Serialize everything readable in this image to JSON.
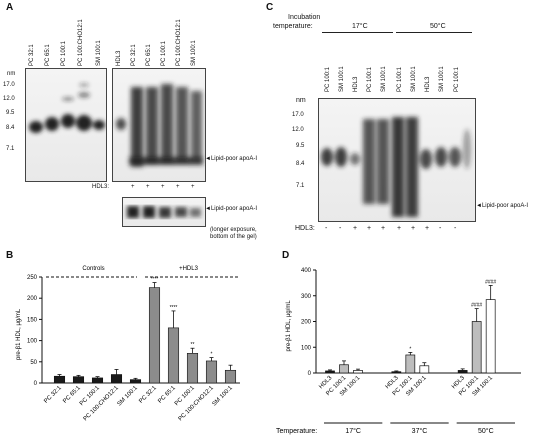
{
  "panels": {
    "A": {
      "letter": "A",
      "lanes_left": [
        "PC 32:1",
        "PC 65:1",
        "PC 100:1",
        "PC 100:CHO12:1",
        "SM 100:1"
      ],
      "lanes_right": [
        "HDL3",
        "PC 32:1",
        "PC 65:1",
        "PC 100:1",
        "PC 100:CHO12:1",
        "SM 100:1"
      ],
      "nm_label": "nm",
      "ladder": [
        "17.0",
        "12.0",
        "9.5",
        "8.4",
        "7.1"
      ],
      "arrow_label": "Lipid-poor apoA-I",
      "hdl_row_label": "HDL3:",
      "hdl_signs": [
        "+",
        "+",
        "+",
        "+",
        "+"
      ],
      "inset_arrow_label": "Lipid-poor apoA-I",
      "inset_note": "(longer exposure, bottom of the gel)"
    },
    "B": {
      "letter": "B",
      "controls_label": "Controls",
      "hdl_label": "+HDL3"
    },
    "C": {
      "letter": "C",
      "incubation_label_1": "Incubation",
      "incubation_label_2": "temperature:",
      "temp_17": "17°C",
      "temp_50": "50°C",
      "lanes": [
        "PC 100:1",
        "SM 100:1",
        "HDL3",
        "PC 100:1",
        "SM 100:1",
        "PC 100:1",
        "SM 100:1",
        "HDL3",
        "SM 100:1",
        "PC 100:1"
      ],
      "nm_label": "nm",
      "ladder": [
        "17.0",
        "12.0",
        "9.5",
        "8.4",
        "7.1"
      ],
      "arrow_label": "Lipid-poor apoA-I",
      "hdl_row_label": "HDL3:",
      "hdl_signs": [
        "-",
        "-",
        "+",
        "+",
        "+",
        "+",
        "+",
        "+",
        "-",
        "-"
      ]
    },
    "D": {
      "letter": "D",
      "temperature_label": "Temperature:",
      "temps": [
        "17°C",
        "37°C",
        "50°C"
      ]
    }
  },
  "chart_data": [
    {
      "type": "bar",
      "panel": "B",
      "ylabel": "pre-β1 HDL, μg/mL",
      "ylim": [
        0,
        250
      ],
      "yticks": [
        0,
        50,
        100,
        150,
        200,
        250
      ],
      "categories": [
        "PC 32:1",
        "PC 65:1",
        "PC 100:1",
        "PC 100:CHO12:1",
        "SM 100:1",
        "PC 32:1",
        "PC 65:1",
        "PC 100:1",
        "PC 100:CHO12:1",
        "SM 100:1"
      ],
      "values": [
        16,
        15,
        12,
        20,
        8,
        225,
        130,
        70,
        52,
        30
      ],
      "errors": [
        4,
        3,
        3,
        12,
        3,
        12,
        40,
        12,
        8,
        12
      ],
      "groups": [
        "Controls",
        "Controls",
        "Controls",
        "Controls",
        "Controls",
        "+HDL3",
        "+HDL3",
        "+HDL3",
        "+HDL3",
        "+HDL3"
      ],
      "annotations": [
        "",
        "",
        "",
        "",
        "",
        "****",
        "****",
        "**",
        "*",
        ""
      ],
      "colors": {
        "Controls": "#1a1a1a",
        "+HDL3": "#8c8c8c"
      }
    },
    {
      "type": "bar",
      "panel": "D",
      "ylabel": "pre-β1 HDL, μg/mL",
      "ylim": [
        0,
        400
      ],
      "yticks": [
        0,
        100,
        200,
        300,
        400
      ],
      "categories": [
        "HDL3",
        "PC 100:1",
        "SM 100:1",
        "HDL3",
        "PC 100:1",
        "SM 100:1",
        "HDL3",
        "PC 100:1",
        "SM 100:1"
      ],
      "values": [
        8,
        32,
        10,
        5,
        70,
        28,
        10,
        200,
        285
      ],
      "errors": [
        4,
        15,
        5,
        3,
        10,
        12,
        6,
        50,
        55
      ],
      "temperature": [
        "17°C",
        "17°C",
        "17°C",
        "37°C",
        "37°C",
        "37°C",
        "50°C",
        "50°C",
        "50°C"
      ],
      "annotations": [
        "",
        "",
        "",
        "",
        "*",
        "",
        "",
        "####",
        "####"
      ],
      "colors": {
        "HDL3": "#1a1a1a",
        "PC 100:1": "#bdbdbd",
        "SM 100:1": "#ffffff"
      }
    }
  ]
}
